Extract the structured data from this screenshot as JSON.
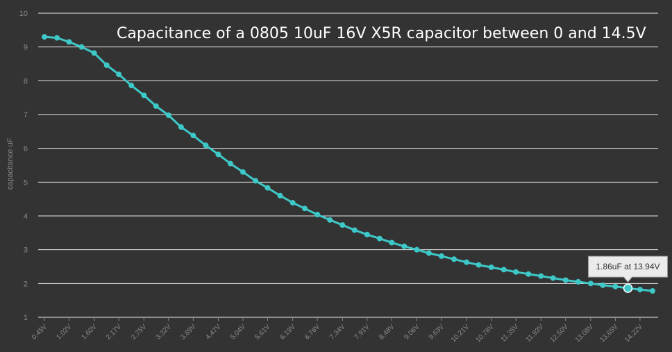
{
  "chart_data": {
    "type": "line",
    "title": "Capacitance of a 0805 10uF 16V X5R capacitor between 0 and 14.5V",
    "ylabel": "capacitance uF",
    "xlabel": "",
    "ylim": [
      1,
      10
    ],
    "yticks": [
      "1",
      "2",
      "3",
      "4",
      "5",
      "6",
      "7",
      "8",
      "9",
      "10"
    ],
    "grid": true,
    "line_color": "#3ec8c8",
    "x_tick_labels": [
      "0.45V",
      "1.02V",
      "1.60V",
      "2.17V",
      "2.75V",
      "3.32V",
      "3.89V",
      "4.47V",
      "5.04V",
      "5.61V",
      "6.19V",
      "6.76V",
      "7.34V",
      "7.91V",
      "8.48V",
      "9.06V",
      "9.63V",
      "10.21V",
      "10.78V",
      "11.35V",
      "11.93V",
      "12.50V",
      "13.08V",
      "13.65V",
      "14.22V"
    ],
    "series": [
      {
        "x": [
          0.45,
          0.74,
          1.02,
          1.31,
          1.6,
          1.89,
          2.17,
          2.46,
          2.75,
          3.03,
          3.32,
          3.61,
          3.89,
          4.18,
          4.47,
          4.75,
          5.04,
          5.33,
          5.61,
          5.9,
          6.19,
          6.47,
          6.76,
          7.05,
          7.34,
          7.62,
          7.91,
          8.2,
          8.48,
          8.77,
          9.06,
          9.34,
          9.63,
          9.92,
          10.21,
          10.49,
          10.78,
          11.07,
          11.35,
          11.64,
          11.93,
          12.21,
          12.5,
          12.79,
          13.08,
          13.36,
          13.65,
          13.94,
          14.22,
          14.51
        ],
        "values": [
          9.3,
          9.27,
          9.15,
          9.0,
          8.82,
          8.46,
          8.19,
          7.86,
          7.57,
          7.25,
          6.98,
          6.63,
          6.38,
          6.09,
          5.82,
          5.55,
          5.3,
          5.04,
          4.83,
          4.6,
          4.39,
          4.22,
          4.04,
          3.88,
          3.73,
          3.58,
          3.45,
          3.33,
          3.21,
          3.1,
          3.0,
          2.9,
          2.81,
          2.72,
          2.63,
          2.55,
          2.48,
          2.41,
          2.34,
          2.28,
          2.22,
          2.16,
          2.1,
          2.05,
          2.0,
          1.95,
          1.91,
          1.86,
          1.82,
          1.78
        ]
      }
    ],
    "tooltip": {
      "text": "1.86uF at 13.94V",
      "x": 13.94,
      "y": 1.86
    }
  }
}
